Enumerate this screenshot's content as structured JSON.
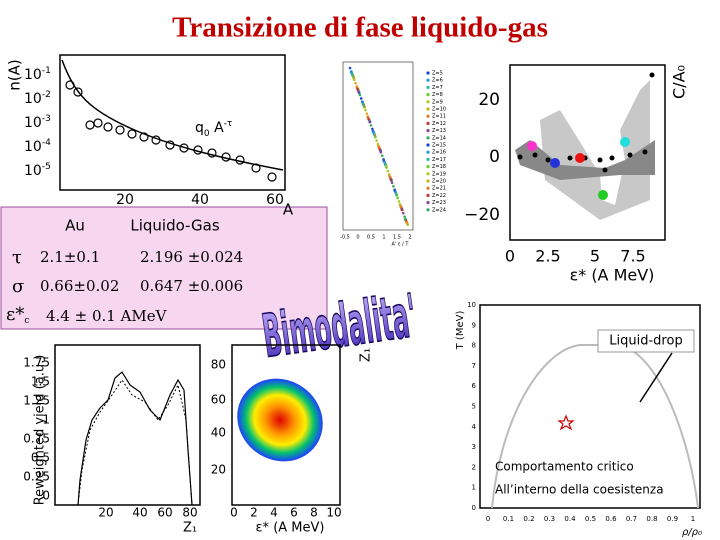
{
  "title": "Transizione di fase liquido-gas",
  "table": {
    "header": [
      "Au",
      "Liquido-Gas"
    ],
    "rows": [
      [
        "τ",
        "2.1±0.1",
        "2.196 ±0.024"
      ],
      [
        "σ",
        "0.66±0.02",
        "0.647 ±0.006"
      ]
    ],
    "epsilon": {
      "symbol": "ε",
      "star": "*",
      "sub": "c",
      "value": "4.4 ± 0.1 AMeV"
    }
  },
  "wordart": "Bimodalita'",
  "fisher_plot": {
    "ylabel": "n(A)",
    "yticks": [
      {
        "base": "10",
        "exp": "-1"
      },
      {
        "base": "10",
        "exp": "-2"
      },
      {
        "base": "10",
        "exp": "-3"
      },
      {
        "base": "10",
        "exp": "-4"
      },
      {
        "base": "10",
        "exp": "-5"
      }
    ],
    "xticks": [
      "20",
      "40",
      "60"
    ],
    "xlabel": "A",
    "annotation": {
      "base": "q",
      "sub": "0",
      "rest": " A",
      "exp": "-τ"
    }
  },
  "scaling_plot": {
    "xticks": [
      "-0.5",
      "0",
      "0.5",
      "1",
      "1.5",
      "2"
    ],
    "xlabel": "A' ε / T",
    "legend": [
      "Z=5",
      "Z=6",
      "Z=7",
      "Z=8",
      "Z=9",
      "Z=10",
      "Z=11",
      "Z=12",
      "Z=13",
      "Z=14",
      "Z=15",
      "Z=16",
      "Z=17",
      "Z=18",
      "Z=19",
      "Z=20",
      "Z=21",
      "Z=22",
      "Z=23",
      "Z=24"
    ]
  },
  "caloric_plot": {
    "ylabel": "C/A₀",
    "yticks": [
      "20",
      "0",
      "−20"
    ],
    "xticks": [
      "0",
      "2.5",
      "5",
      "7.5"
    ],
    "xlabel": "ε* (A MeV)"
  },
  "phase_diagram": {
    "ylabel": "T (MeV)",
    "yticks": [
      "0",
      "1",
      "2",
      "3",
      "4",
      "5",
      "6",
      "7",
      "8",
      "9",
      "10"
    ],
    "xticks": [
      "0",
      "0.1",
      "0.2",
      "0.3",
      "0.4",
      "0.5",
      "0.6",
      "0.7",
      "0.8",
      "0.9",
      "1"
    ],
    "xlabel": "ρ/ρ₀",
    "liquid_drop": "Liquid-drop",
    "note_line1": "Comportamento critico",
    "note_line2": "All’interno della coesistenza"
  },
  "yield_plot": {
    "ylabel": "Reweighted yield (a.u.)",
    "yticks": [
      "0",
      "0.25",
      "0.5",
      "0.75",
      "1",
      "1.25",
      "1.5",
      "1.75"
    ],
    "xticks": [
      "20",
      "40",
      "60",
      "80"
    ],
    "xlabel": "Z₁"
  },
  "correlation_plot": {
    "yticks": [
      "20",
      "40",
      "60",
      "80"
    ],
    "xticks": [
      "0",
      "2",
      "4",
      "6",
      "8",
      "10"
    ],
    "xlabel": "ε* (A MeV)",
    "side_label": "Z₁"
  }
}
